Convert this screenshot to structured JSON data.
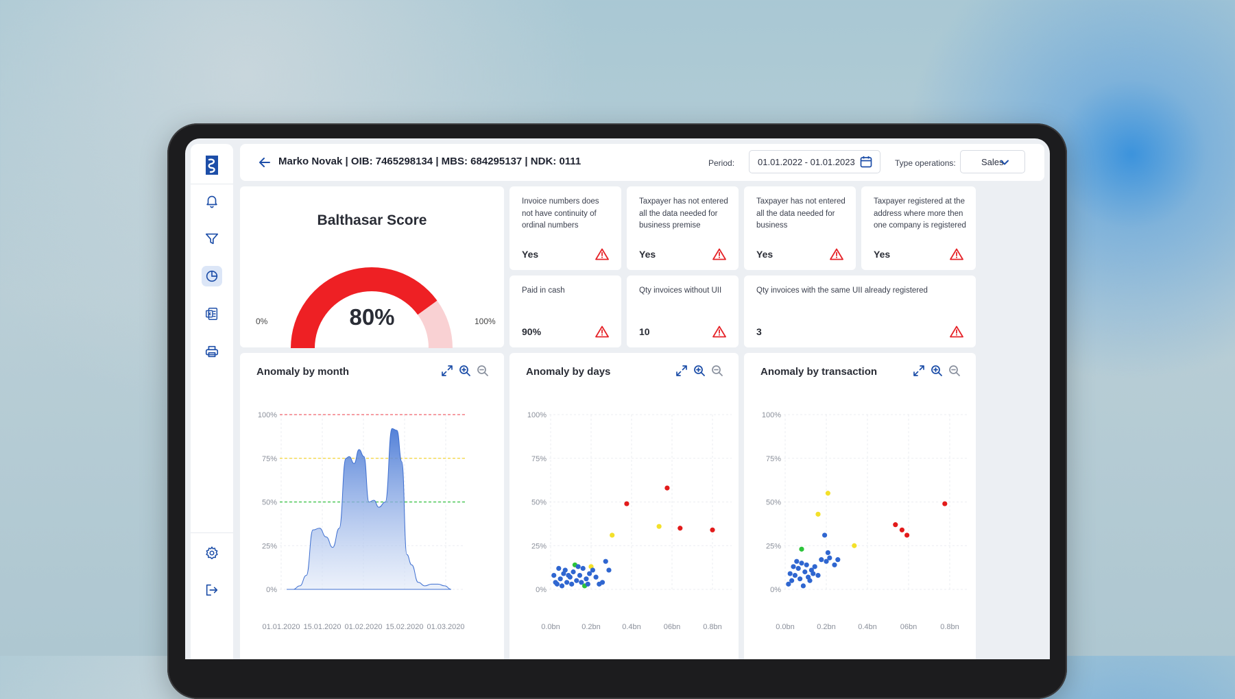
{
  "header": {
    "title": "Marko Novak | OIB: 7465298134 | MBS: 684295137 | NDK: 0111",
    "period_label": "Period:",
    "period_value": "01.01.2022 - 01.01.2023",
    "type_label": "Type operations:",
    "type_value": "Sales"
  },
  "sidebar": {
    "icons": [
      "logo-icon",
      "bell-icon",
      "filter-icon",
      "pie-chart-icon",
      "excel-icon",
      "printer-icon",
      "gear-icon",
      "logout-icon"
    ],
    "active": "pie-chart-icon"
  },
  "score": {
    "title": "Balthasar Score",
    "value_label": "80%",
    "value": 0.8,
    "min_label": "0%",
    "max_label": "100%",
    "color": "#ee2024",
    "track_color": "#f9d1d3"
  },
  "flags": [
    {
      "text": "Invoice numbers does not have continuity of ordinal numbers",
      "value": "Yes"
    },
    {
      "text": "Taxpayer has not entered all the data needed for business premise",
      "value": "Yes"
    },
    {
      "text": "Taxpayer has not entered all the data needed for business",
      "value": "Yes"
    },
    {
      "text": "Taxpayer registered at the address where more then one company is registered",
      "value": "Yes"
    },
    {
      "text": "Paid in cash",
      "value": "90%"
    },
    {
      "text": "Qty invoices without UII",
      "value": "10"
    },
    {
      "text": "Qty invoices with the same UII already registered",
      "value": "3"
    }
  ],
  "colors": {
    "accent": "#1d4ea8",
    "warning": "#e52227",
    "blue": "#2f66d0",
    "green": "#2cc43a",
    "yellow": "#f3e02a",
    "red": "#e21b1b"
  },
  "chart_data": [
    {
      "type": "area",
      "title": "Anomaly by month",
      "y_ticks": [
        "100%",
        "75%",
        "50%",
        "25%",
        "0%"
      ],
      "x_ticks": [
        "01.01.2020",
        "15.01.2020",
        "01.02.2020",
        "15.02.2020",
        "01.03.2020"
      ],
      "ylim": [
        0,
        100
      ],
      "thresholds": [
        {
          "value": 100,
          "color": "#f0616a"
        },
        {
          "value": 75,
          "color": "#f3d436"
        },
        {
          "value": 50,
          "color": "#2fbf3b"
        }
      ],
      "x": [
        0,
        0.04,
        0.08,
        0.12,
        0.16,
        0.2,
        0.24,
        0.28,
        0.32,
        0.36,
        0.38,
        0.41,
        0.44,
        0.47,
        0.5,
        0.53,
        0.56,
        0.6,
        0.64,
        0.67,
        0.7,
        0.73,
        0.76,
        0.8,
        0.84,
        0.88,
        0.92,
        0.96,
        1.0
      ],
      "values": [
        0,
        0,
        2,
        8,
        34,
        35,
        30,
        24,
        35,
        75,
        76,
        72,
        80,
        76,
        50,
        51,
        47,
        50,
        92,
        91,
        73,
        20,
        14,
        4,
        2,
        3,
        3,
        2,
        0
      ]
    },
    {
      "type": "scatter",
      "title": "Anomaly by days",
      "y_ticks": [
        "100%",
        "75%",
        "50%",
        "25%",
        "0%"
      ],
      "x_ticks": [
        "0.0bn",
        "0.2bn",
        "0.4bn",
        "06bn",
        "0.8bn"
      ],
      "xlim": [
        0,
        1.0
      ],
      "ylim": [
        0,
        100
      ],
      "series": [
        {
          "color": "#e21b1b",
          "points": [
            [
              0.47,
              49
            ],
            [
              0.72,
              58
            ],
            [
              0.8,
              35
            ],
            [
              1.0,
              34
            ]
          ]
        },
        {
          "color": "#f3e02a",
          "points": [
            [
              0.38,
              31
            ],
            [
              0.67,
              36
            ],
            [
              0.25,
              13
            ]
          ]
        },
        {
          "color": "#2cc43a",
          "points": [
            [
              0.15,
              14
            ],
            [
              0.21,
              2
            ]
          ]
        },
        {
          "color": "#2f66d0",
          "points": [
            [
              0.04,
              3
            ],
            [
              0.06,
              6
            ],
            [
              0.08,
              9
            ],
            [
              0.1,
              4
            ],
            [
              0.12,
              7
            ],
            [
              0.14,
              10
            ],
            [
              0.16,
              5
            ],
            [
              0.18,
              8
            ],
            [
              0.2,
              12
            ],
            [
              0.22,
              6
            ],
            [
              0.24,
              9
            ],
            [
              0.26,
              11
            ],
            [
              0.05,
              12
            ],
            [
              0.07,
              2
            ],
            [
              0.09,
              11
            ],
            [
              0.11,
              8
            ],
            [
              0.13,
              3
            ],
            [
              0.17,
              13
            ],
            [
              0.19,
              4
            ],
            [
              0.23,
              3
            ],
            [
              0.28,
              7
            ],
            [
              0.3,
              3
            ],
            [
              0.32,
              4
            ],
            [
              0.34,
              16
            ],
            [
              0.36,
              11
            ],
            [
              0.02,
              8
            ],
            [
              0.03,
              4
            ]
          ]
        }
      ]
    },
    {
      "type": "scatter",
      "title": "Anomaly by transaction",
      "y_ticks": [
        "100%",
        "75%",
        "50%",
        "25%",
        "0%"
      ],
      "x_ticks": [
        "0.0bn",
        "0.2bn",
        "0.4bn",
        "06bn",
        "0.8bn"
      ],
      "xlim": [
        0,
        1.0
      ],
      "ylim": [
        0,
        100
      ],
      "series": [
        {
          "color": "#e21b1b",
          "points": [
            [
              0.67,
              37
            ],
            [
              0.71,
              34
            ],
            [
              0.74,
              31
            ],
            [
              0.97,
              49
            ]
          ]
        },
        {
          "color": "#f3e02a",
          "points": [
            [
              0.2,
              43
            ],
            [
              0.26,
              55
            ],
            [
              0.42,
              25
            ]
          ]
        },
        {
          "color": "#2cc43a",
          "points": [
            [
              0.1,
              23
            ]
          ]
        },
        {
          "color": "#2f66d0",
          "points": [
            [
              0.02,
              3
            ],
            [
              0.04,
              5
            ],
            [
              0.06,
              8
            ],
            [
              0.08,
              12
            ],
            [
              0.1,
              15
            ],
            [
              0.12,
              10
            ],
            [
              0.14,
              7
            ],
            [
              0.16,
              11
            ],
            [
              0.18,
              13
            ],
            [
              0.2,
              8
            ],
            [
              0.24,
              31
            ],
            [
              0.26,
              21
            ],
            [
              0.27,
              18
            ],
            [
              0.3,
              14
            ],
            [
              0.32,
              17
            ],
            [
              0.03,
              9
            ],
            [
              0.05,
              13
            ],
            [
              0.07,
              16
            ],
            [
              0.09,
              6
            ],
            [
              0.11,
              2
            ],
            [
              0.13,
              14
            ],
            [
              0.15,
              5
            ],
            [
              0.17,
              9
            ],
            [
              0.22,
              17
            ],
            [
              0.25,
              16
            ]
          ]
        }
      ]
    }
  ]
}
